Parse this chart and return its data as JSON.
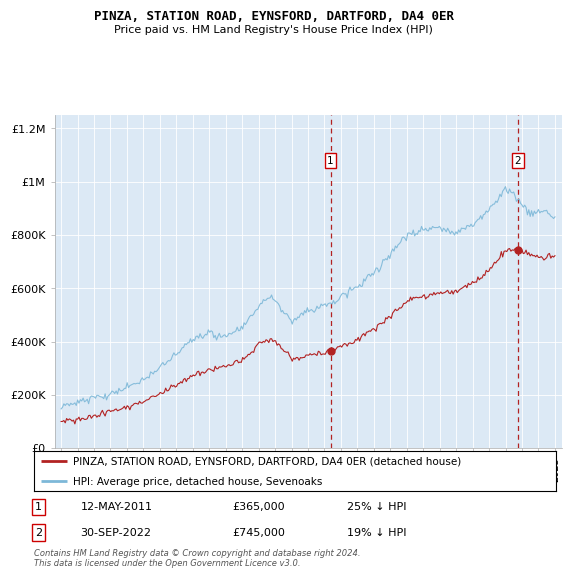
{
  "title": "PINZA, STATION ROAD, EYNSFORD, DARTFORD, DA4 0ER",
  "subtitle": "Price paid vs. HM Land Registry's House Price Index (HPI)",
  "background_color": "#dce9f5",
  "plot_bg_color": "#dce9f5",
  "hpi_color": "#7db8d8",
  "price_color": "#b22222",
  "ylim": [
    0,
    1250000
  ],
  "yticks": [
    0,
    200000,
    400000,
    600000,
    800000,
    1000000,
    1200000
  ],
  "ytick_labels": [
    "£0",
    "£200K",
    "£400K",
    "£600K",
    "£800K",
    "£1M",
    "£1.2M"
  ],
  "sale1_date": 2011.37,
  "sale1_price": 365000,
  "sale1_label": "1",
  "sale2_date": 2022.75,
  "sale2_price": 745000,
  "sale2_label": "2",
  "xmin": 1994.6,
  "xmax": 2025.4,
  "legend_line1": "PINZA, STATION ROAD, EYNSFORD, DARTFORD, DA4 0ER (detached house)",
  "legend_line2": "HPI: Average price, detached house, Sevenoaks",
  "annotation1_date": "12-MAY-2011",
  "annotation1_price": "£365,000",
  "annotation1_pct": "25% ↓ HPI",
  "annotation2_date": "30-SEP-2022",
  "annotation2_price": "£745,000",
  "annotation2_pct": "19% ↓ HPI",
  "footer": "Contains HM Land Registry data © Crown copyright and database right 2024.\nThis data is licensed under the Open Government Licence v3.0."
}
